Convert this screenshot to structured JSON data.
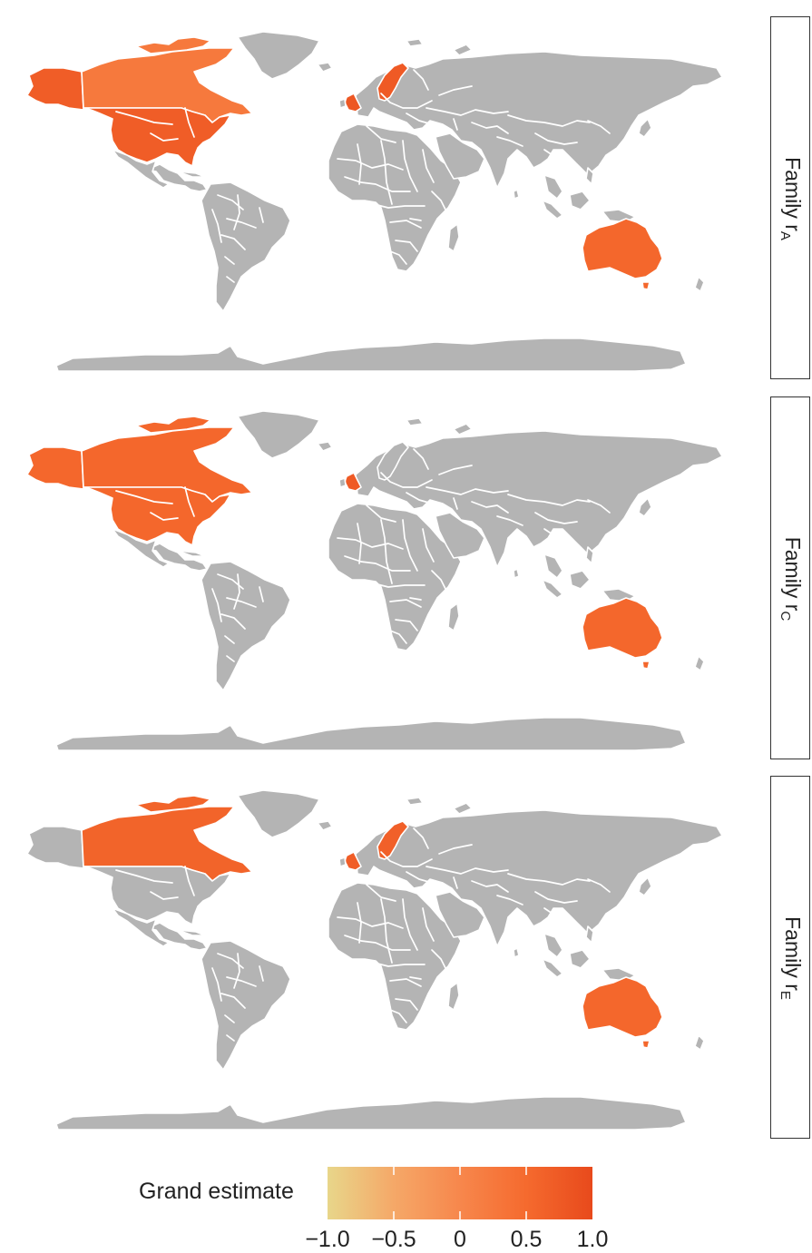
{
  "colors": {
    "land_no_data": "#b4b4b4",
    "border": "#ffffff",
    "scale_low": "#e8d68a",
    "scale_mid_low": "#f5a868",
    "scale_mid": "#f7874c",
    "scale_high": "#f56a2e",
    "scale_max": "#e84a1c"
  },
  "panels": [
    {
      "label": "Family r",
      "sub": "A",
      "countries": [
        {
          "name": "Alaska (USA)",
          "value": 0.7
        },
        {
          "name": "Canada",
          "value": 0.25
        },
        {
          "name": "USA",
          "value": 0.7
        },
        {
          "name": "United Kingdom",
          "value": 0.8
        },
        {
          "name": "Norway/Sweden",
          "value": 0.75
        },
        {
          "name": "Australia",
          "value": 0.55
        }
      ]
    },
    {
      "label": "Family r",
      "sub": "C",
      "countries": [
        {
          "name": "Alaska (USA)",
          "value": 0.55
        },
        {
          "name": "Canada",
          "value": 0.55
        },
        {
          "name": "USA",
          "value": 0.55
        },
        {
          "name": "United Kingdom",
          "value": 0.75
        },
        {
          "name": "Australia",
          "value": 0.55
        }
      ]
    },
    {
      "label": "Family r",
      "sub": "E",
      "countries": [
        {
          "name": "Canada",
          "value": 0.6
        },
        {
          "name": "United Kingdom",
          "value": 0.7
        },
        {
          "name": "Norway/Sweden",
          "value": 0.65
        },
        {
          "name": "Australia",
          "value": 0.55
        }
      ]
    }
  ],
  "legend": {
    "title": "Grand estimate",
    "ticks": [
      "−1.0",
      "−0.5",
      "0",
      "0.5",
      "1.0"
    ],
    "range": [
      -1.0,
      1.0
    ]
  }
}
